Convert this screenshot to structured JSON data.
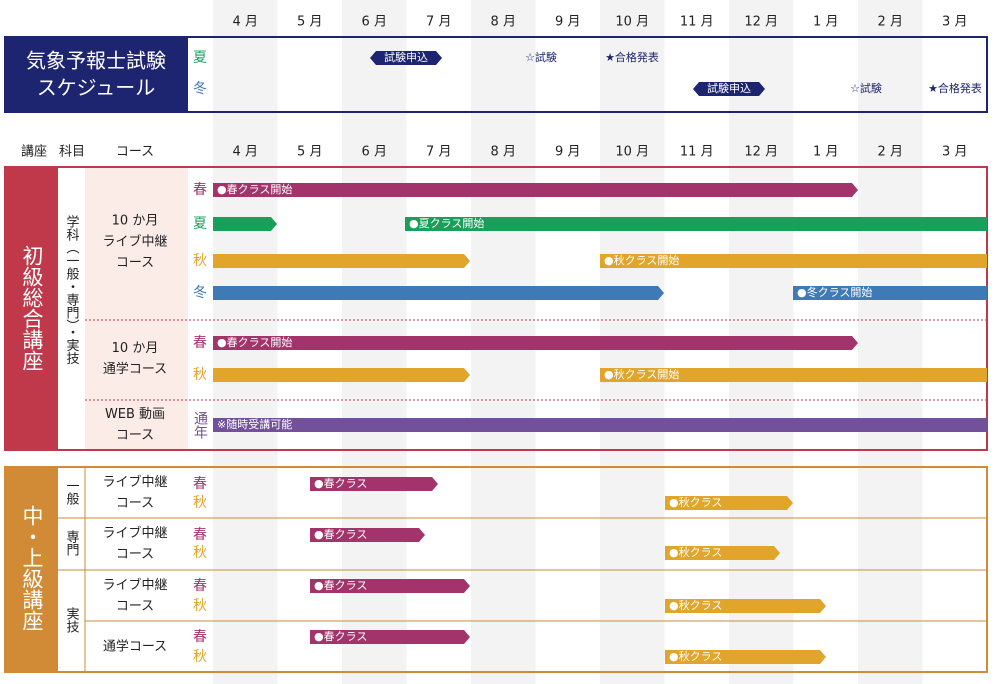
{
  "months": [
    "4 月",
    "5 月",
    "6 月",
    "7 月",
    "8 月",
    "9 月",
    "10 月",
    "11 月",
    "12 月",
    "1 月",
    "2 月",
    "3 月"
  ],
  "exam": {
    "title": [
      "気象予報士試験",
      "スケジュール"
    ],
    "rows": [
      {
        "season": "夏",
        "apply": "試験申込",
        "exam": "☆試験",
        "result": "★合格発表"
      },
      {
        "season": "冬",
        "apply": "試験申込",
        "exam": "☆試験",
        "result": "★合格発表"
      }
    ]
  },
  "columns": {
    "course_type": "講座",
    "subject": "科目",
    "course": "コース"
  },
  "sections": [
    {
      "title": "初級総合講座",
      "subject": "学科（一般・専門）・実技",
      "groups": [
        {
          "course": [
            "10 か月",
            "ライブ中継",
            "コース"
          ],
          "rows": [
            {
              "season": "春",
              "labels": [
                "●春クラス開始"
              ]
            },
            {
              "season": "夏",
              "labels": [
                "●夏クラス開始"
              ]
            },
            {
              "season": "秋",
              "labels": [
                "●秋クラス開始"
              ]
            },
            {
              "season": "冬",
              "labels": [
                "●冬クラス開始"
              ]
            }
          ]
        },
        {
          "course": [
            "10 か月",
            "通学コース"
          ],
          "rows": [
            {
              "season": "春",
              "labels": [
                "●春クラス開始"
              ]
            },
            {
              "season": "秋",
              "labels": [
                "●秋クラス開始"
              ]
            }
          ]
        },
        {
          "course": [
            "WEB 動画",
            "コース"
          ],
          "rows": [
            {
              "season": "通年",
              "labels": [
                "※随時受講可能"
              ]
            }
          ]
        }
      ]
    },
    {
      "title": "中・上級講座",
      "groups": [
        {
          "subject": "一般",
          "course": [
            "ライブ中継",
            "コース"
          ],
          "rows": [
            {
              "season": "春",
              "labels": [
                "●春クラス"
              ]
            },
            {
              "season": "秋",
              "labels": [
                "●秋クラス"
              ]
            }
          ]
        },
        {
          "subject": "専門",
          "course": [
            "ライブ中継",
            "コース"
          ],
          "rows": [
            {
              "season": "春",
              "labels": [
                "●春クラス"
              ]
            },
            {
              "season": "秋",
              "labels": [
                "●秋クラス"
              ]
            }
          ]
        },
        {
          "subject": "実技",
          "course": [
            "ライブ中継",
            "コース"
          ],
          "rows": [
            {
              "season": "春",
              "labels": [
                "●春クラス"
              ]
            },
            {
              "season": "秋",
              "labels": [
                "●秋クラス"
              ]
            }
          ]
        },
        {
          "course": [
            "通学コース"
          ],
          "rows": [
            {
              "season": "春",
              "labels": [
                "●春クラス"
              ]
            },
            {
              "season": "秋",
              "labels": [
                "●秋クラス"
              ]
            }
          ]
        }
      ]
    }
  ]
}
